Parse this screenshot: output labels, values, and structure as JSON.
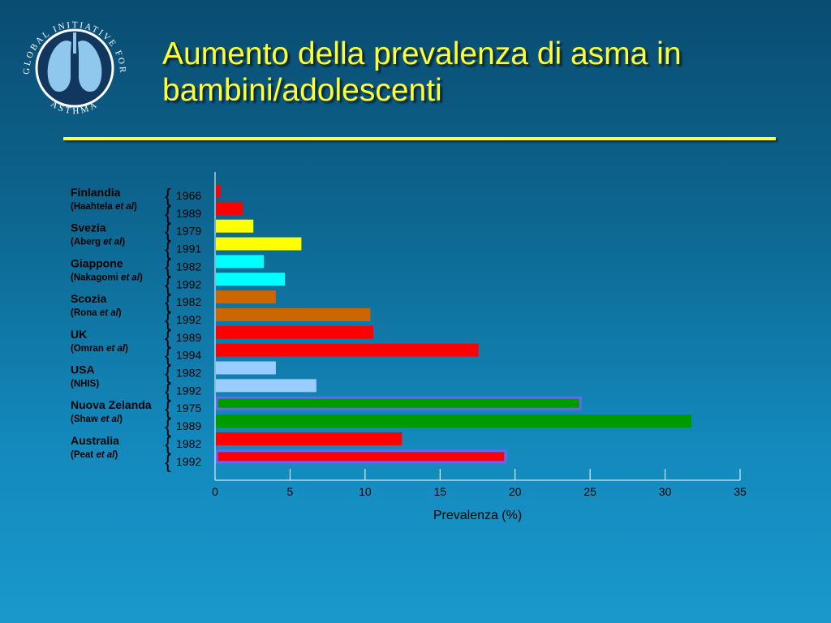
{
  "slide": {
    "title_line1": "Aumento della prevalenza di asma in",
    "title_line2": "bambini/adolescenti",
    "title_color": "#ffff33"
  },
  "logo": {
    "text_top": "GLOBAL INITIATIVE FOR",
    "text_bottom": "ASTHMA",
    "icon": "lungs-icon"
  },
  "chart_data": {
    "type": "bar",
    "orientation": "horizontal",
    "xlabel": "Prevalenza (%)",
    "xlim": [
      0,
      35
    ],
    "xticks": [
      "0",
      "5",
      "10",
      "15",
      "20",
      "25",
      "30",
      "35"
    ],
    "groups": [
      {
        "country": "Finlandia",
        "source": "Haahtela",
        "source_suffix": "et al",
        "bars": [
          {
            "year": "1966",
            "value": 0.3,
            "color": "#ff0000"
          },
          {
            "year": "1989",
            "value": 1.8,
            "color": "#ff0000"
          }
        ]
      },
      {
        "country": "Svezia",
        "source": "Aberg",
        "source_suffix": "et al",
        "bars": [
          {
            "year": "1979",
            "value": 2.5,
            "color": "#ffff00"
          },
          {
            "year": "1991",
            "value": 5.7,
            "color": "#ffff00"
          }
        ]
      },
      {
        "country": "Giappone",
        "source": "Nakagomi",
        "source_suffix": "et al",
        "bars": [
          {
            "year": "1982",
            "value": 3.2,
            "color": "#00ffff"
          },
          {
            "year": "1992",
            "value": 4.6,
            "color": "#00ffff"
          }
        ]
      },
      {
        "country": "Scozia",
        "source": "Rona",
        "source_suffix": "et al",
        "bars": [
          {
            "year": "1982",
            "value": 4.0,
            "color": "#cc6600"
          },
          {
            "year": "1992",
            "value": 10.3,
            "color": "#cc6600"
          }
        ]
      },
      {
        "country": "UK",
        "source": "Omran",
        "source_suffix": "et al",
        "bars": [
          {
            "year": "1989",
            "value": 10.5,
            "color": "#ff0000"
          },
          {
            "year": "1994",
            "value": 17.5,
            "color": "#ff0000"
          }
        ]
      },
      {
        "country": "USA",
        "source": "NHIS",
        "source_suffix": "",
        "bars": [
          {
            "year": "1982",
            "value": 4.0,
            "color": "#99ccff"
          },
          {
            "year": "1992",
            "value": 6.7,
            "color": "#99ccff"
          }
        ]
      },
      {
        "country": "Nuova Zelanda",
        "source": "Shaw",
        "source_suffix": "et al",
        "bars": [
          {
            "year": "1975",
            "value": 24.3,
            "color": "#009900",
            "outlined": true
          },
          {
            "year": "1989",
            "value": 31.7,
            "color": "#009900"
          }
        ]
      },
      {
        "country": "Australia",
        "source": "Peat",
        "source_suffix": "et al",
        "bars": [
          {
            "year": "1982",
            "value": 12.4,
            "color": "#ff0000"
          },
          {
            "year": "1992",
            "value": 19.3,
            "color": "#ff0000",
            "outlined": true
          }
        ]
      }
    ],
    "outline_color": "#6666ff",
    "grid": false
  }
}
